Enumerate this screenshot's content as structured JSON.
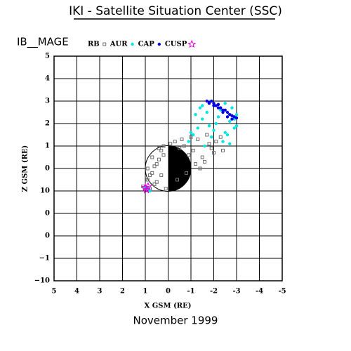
{
  "title": "IKI - Satellite Situation Center (SSC)",
  "subtitle": "IB__MAGE",
  "footer": "November    1999",
  "chart_data": {
    "type": "scatter",
    "x_label": "X GSM (RE)",
    "y_label": "Z GSM (RE)",
    "xlim": [
      5,
      -5
    ],
    "ylim": [
      -5,
      5
    ],
    "xticks": [
      5,
      4,
      3,
      2,
      1,
      0,
      -1,
      -2,
      -3,
      -4,
      -5
    ],
    "yticks": [
      5,
      4,
      3,
      2,
      1,
      0,
      {
        "value": -1,
        "label": "10"
      },
      {
        "value": -2,
        "label": "0"
      },
      {
        "value": -3,
        "label": "0"
      },
      {
        "value": -4,
        "label": "−1"
      },
      {
        "value": -5,
        "label": "−10"
      }
    ],
    "grid": true,
    "series": [
      {
        "name": "RB",
        "color": "#707070",
        "marker": "square",
        "x": [
          1.1,
          0.9,
          0.8,
          0.7,
          0.6,
          0.5,
          0.4,
          0.3,
          0.2,
          0.1,
          0.9,
          0.7,
          0.5,
          0.3,
          -0.1,
          -0.3,
          -0.5,
          -0.7,
          -0.9,
          -1.1,
          -1.3,
          -1.5,
          -1.7,
          -1.9,
          -2.1,
          -0.4,
          -0.8,
          -1.2,
          -1.6,
          -2.0,
          0.6,
          0.4,
          -1.0,
          -1.4,
          -1.8,
          -2.3,
          0.8,
          0.2,
          -0.6,
          -2.4
        ],
        "values": [
          -0.8,
          -0.5,
          -0.9,
          -0.2,
          0.1,
          -0.6,
          0.4,
          0.8,
          1.0,
          -0.9,
          0.0,
          0.5,
          0.2,
          -0.3,
          1.1,
          1.2,
          0.9,
          1.0,
          0.6,
          0.8,
          1.3,
          0.5,
          1.5,
          0.9,
          1.2,
          -0.5,
          -0.2,
          0.2,
          0.3,
          0.7,
          -0.7,
          0.9,
          1.4,
          0.0,
          1.1,
          1.4,
          -0.3,
          0.6,
          1.3,
          0.8
        ]
      },
      {
        "name": "AUR",
        "color": "#00e5e5",
        "marker": "dot",
        "x": [
          -0.9,
          -1.1,
          -1.3,
          -1.5,
          -1.7,
          -1.9,
          -2.1,
          -2.3,
          -2.5,
          -2.7,
          -2.9,
          -3.0,
          -1.2,
          -1.6,
          -2.0,
          -2.4,
          -2.8,
          -1.4,
          -1.8,
          -2.2,
          -2.6,
          -3.0,
          -1.0,
          -2.9,
          -2.5,
          0.9,
          0.8,
          1.0,
          -1.5,
          -2.7
        ],
        "values": [
          1.2,
          1.5,
          1.8,
          2.2,
          2.5,
          1.4,
          2.0,
          2.6,
          1.6,
          2.1,
          1.8,
          2.4,
          2.4,
          1.0,
          1.7,
          1.2,
          2.7,
          2.7,
          1.9,
          2.3,
          1.5,
          1.9,
          1.6,
          2.2,
          2.9,
          -0.9,
          -1.0,
          -0.8,
          2.8,
          1.1
        ]
      },
      {
        "name": "CAP",
        "color": "#0000e0",
        "marker": "dot",
        "x": [
          -1.7,
          -1.8,
          -1.9,
          -2.0,
          -2.1,
          -2.2,
          -2.3,
          -2.4,
          -2.5,
          -2.6,
          -2.7,
          -2.8,
          -2.9,
          -3.0,
          -1.8,
          -2.0,
          -2.2,
          -2.4,
          -2.6,
          -2.8
        ],
        "values": [
          3.0,
          2.95,
          3.0,
          2.9,
          2.8,
          2.85,
          2.7,
          2.6,
          2.6,
          2.5,
          2.4,
          2.35,
          2.3,
          2.25,
          2.9,
          2.8,
          2.7,
          2.5,
          2.3,
          2.2
        ]
      },
      {
        "name": "CUSP",
        "color": "#e000e0",
        "marker": "star",
        "x": [
          1.0,
          0.95,
          0.88
        ],
        "values": [
          -0.85,
          -0.95,
          -0.8
        ]
      }
    ]
  }
}
